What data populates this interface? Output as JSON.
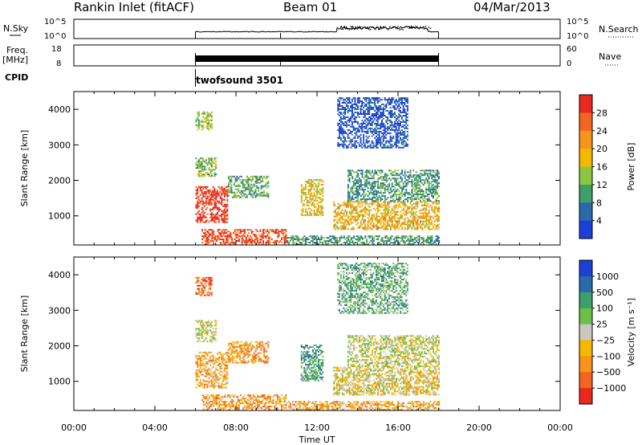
{
  "header": {
    "station": "Rankin Inlet (fitACF)",
    "beam": "Beam 01",
    "date": "04/Mar/2013"
  },
  "nsky_panel": {
    "left_label": "N.Sky",
    "left_ticks": [
      "10^5",
      "10^0"
    ],
    "right_ticks": [
      "10^5",
      "10^0"
    ],
    "right_label": "N.Search"
  },
  "freq_panel": {
    "left_label_line1": "Freq.",
    "left_label_line2": "[MHz]",
    "left_ticks": [
      "18",
      "8"
    ],
    "right_ticks": [
      "60",
      "0"
    ],
    "right_label": "Nave"
  },
  "cpid": {
    "label": "CPID",
    "program": "twofsound 3501"
  },
  "x_axis": {
    "label": "Time UT",
    "ticks": [
      "00:00",
      "04:00",
      "08:00",
      "12:00",
      "16:00",
      "20:00",
      "00:00"
    ]
  },
  "chart_data": [
    {
      "type": "heatmap",
      "panel": "power",
      "xlabel": "Time UT",
      "ylabel": "Slant Range [km]",
      "x_range_hours": [
        0,
        24
      ],
      "ylim": [
        180,
        4500
      ],
      "y_ticks": [
        1000,
        2000,
        3000,
        4000
      ],
      "data_start_hour": 6.0,
      "data_end_hour": 18.0,
      "colorbar": {
        "label": "Power [dB]",
        "ticks": [
          "28",
          "24",
          "20",
          "16",
          "12",
          "8",
          "4"
        ],
        "colors": [
          "#e8291f",
          "#f26522",
          "#f7941d",
          "#f5b800",
          "#8dc63f",
          "#3e9f6a",
          "#2b6aa8",
          "#1c3fd6"
        ]
      },
      "echo_regions": [
        {
          "t0": 6.0,
          "t1": 7.6,
          "r0": 800,
          "r1": 1800,
          "level": 0.95
        },
        {
          "t0": 7.6,
          "t1": 9.6,
          "r0": 1500,
          "r1": 2100,
          "level": 0.35
        },
        {
          "t0": 6.0,
          "t1": 7.0,
          "r0": 2100,
          "r1": 2600,
          "level": 0.4
        },
        {
          "t0": 6.0,
          "t1": 6.8,
          "r0": 3400,
          "r1": 3900,
          "level": 0.45
        },
        {
          "t0": 6.3,
          "t1": 10.5,
          "r0": 180,
          "r1": 600,
          "level": 0.85
        },
        {
          "t0": 10.5,
          "t1": 18.0,
          "r0": 180,
          "r1": 450,
          "level": 0.3
        },
        {
          "t0": 11.2,
          "t1": 12.3,
          "r0": 1000,
          "r1": 2000,
          "level": 0.55
        },
        {
          "t0": 12.8,
          "t1": 18.0,
          "r0": 600,
          "r1": 1400,
          "level": 0.6
        },
        {
          "t0": 13.5,
          "t1": 18.0,
          "r0": 1400,
          "r1": 2300,
          "level": 0.3
        },
        {
          "t0": 13.0,
          "t1": 16.5,
          "r0": 2900,
          "r1": 4300,
          "level": 0.1
        }
      ]
    },
    {
      "type": "heatmap",
      "panel": "velocity",
      "xlabel": "Time UT",
      "ylabel": "Slant Range [km]",
      "x_range_hours": [
        0,
        24
      ],
      "ylim": [
        180,
        4500
      ],
      "y_ticks": [
        1000,
        2000,
        3000,
        4000
      ],
      "data_start_hour": 6.0,
      "data_end_hour": 18.0,
      "colorbar": {
        "label": "Velocity [m s⁻¹]",
        "ticks": [
          "1000",
          "500",
          "100",
          "25",
          "−25",
          "−100",
          "−500",
          "−1000"
        ],
        "colors": [
          "#1c3fd6",
          "#2b6aa8",
          "#3e9f6a",
          "#6cc04a",
          "#c9c9c0",
          "#f5b800",
          "#f7941d",
          "#f26522",
          "#e8291f"
        ]
      },
      "echo_regions": [
        {
          "t0": 6.0,
          "t1": 7.6,
          "r0": 800,
          "r1": 1800,
          "level": 0.35
        },
        {
          "t0": 7.6,
          "t1": 9.6,
          "r0": 1500,
          "r1": 2100,
          "level": 0.3
        },
        {
          "t0": 6.0,
          "t1": 7.0,
          "r0": 2100,
          "r1": 2700,
          "level": 0.5
        },
        {
          "t0": 6.0,
          "t1": 6.8,
          "r0": 3400,
          "r1": 3900,
          "level": 0.15
        },
        {
          "t0": 6.3,
          "t1": 10.5,
          "r0": 180,
          "r1": 600,
          "level": 0.3
        },
        {
          "t0": 10.5,
          "t1": 18.0,
          "r0": 180,
          "r1": 450,
          "level": 0.35
        },
        {
          "t0": 11.2,
          "t1": 12.3,
          "r0": 1000,
          "r1": 2000,
          "level": 0.7
        },
        {
          "t0": 12.8,
          "t1": 18.0,
          "r0": 600,
          "r1": 1400,
          "level": 0.45
        },
        {
          "t0": 13.5,
          "t1": 18.0,
          "r0": 1400,
          "r1": 2300,
          "level": 0.5
        },
        {
          "t0": 13.0,
          "t1": 16.5,
          "r0": 2900,
          "r1": 4300,
          "level": 0.65
        }
      ]
    }
  ]
}
